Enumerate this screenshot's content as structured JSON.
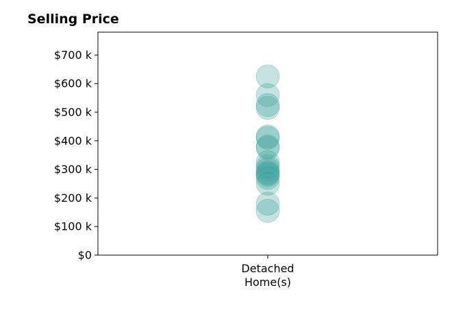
{
  "chart_data": {
    "type": "scatter",
    "title": "Selling Price",
    "xlabel": "",
    "ylabel": "",
    "categories": [
      "Detached\nHome(s)"
    ],
    "y_ticks": [
      {
        "value": 0,
        "label": "$0"
      },
      {
        "value": 100000,
        "label": "$100 k"
      },
      {
        "value": 200000,
        "label": "$200 k"
      },
      {
        "value": 300000,
        "label": "$300 k"
      },
      {
        "value": 400000,
        "label": "$400 k"
      },
      {
        "value": 500000,
        "label": "$500 k"
      },
      {
        "value": 600000,
        "label": "$600 k"
      },
      {
        "value": 700000,
        "label": "$700 k"
      }
    ],
    "ylim": [
      0,
      780000
    ],
    "grid": false,
    "marker_color": "#3aa39a",
    "marker_opacity": 0.3,
    "series": [
      {
        "category": "Detached\nHome(s)",
        "values": [
          625000,
          560000,
          525000,
          515000,
          415000,
          410000,
          380000,
          375000,
          325000,
          310000,
          300000,
          290000,
          285000,
          280000,
          270000,
          250000,
          180000,
          155000
        ]
      }
    ]
  }
}
